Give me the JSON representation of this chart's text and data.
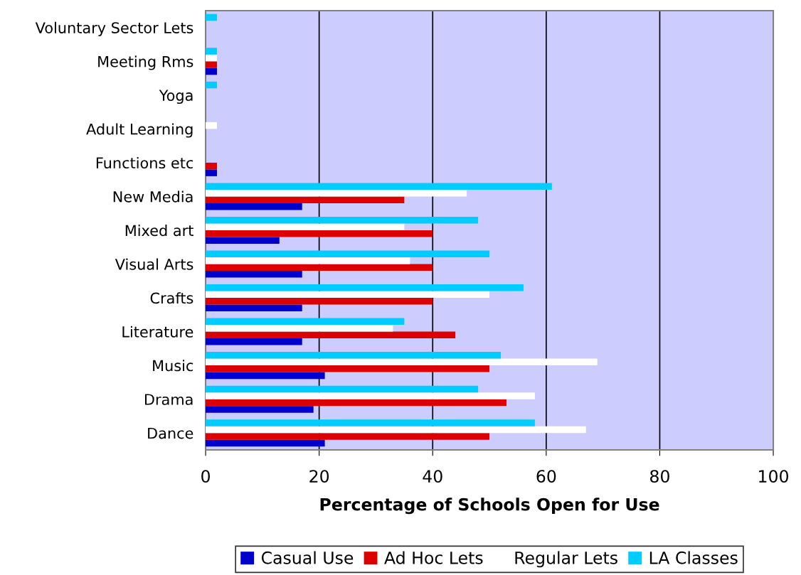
{
  "chart_data": {
    "type": "bar",
    "orientation": "horizontal",
    "xlabel": "Percentage of Schools Open for Use",
    "categories": [
      "Voluntary Sector Lets",
      "Meeting Rms",
      "Yoga",
      "Adult Learning",
      "Functions etc",
      "New Media",
      "Mixed art",
      "Visual Arts",
      "Crafts",
      "Literature",
      "Music",
      "Drama",
      "Dance"
    ],
    "series": [
      {
        "name": "Casual Use",
        "color": "#0000cc",
        "values": [
          null,
          2,
          null,
          null,
          2,
          17,
          13,
          17,
          17,
          17,
          21,
          19,
          21
        ]
      },
      {
        "name": "Ad Hoc Lets",
        "color": "#dd0000",
        "values": [
          null,
          2,
          null,
          null,
          2,
          35,
          40,
          40,
          40,
          44,
          50,
          53,
          50
        ]
      },
      {
        "name": "Regular Lets",
        "color": "#ffffff",
        "values": [
          null,
          2,
          null,
          2,
          null,
          46,
          35,
          36,
          50,
          33,
          69,
          58,
          67
        ]
      },
      {
        "name": "LA Classes",
        "color": "#00ccff",
        "values": [
          2,
          2,
          2,
          null,
          null,
          61,
          48,
          50,
          56,
          35,
          52,
          48,
          58
        ]
      }
    ],
    "xlim": [
      0,
      100
    ],
    "xticks": [
      0,
      20,
      40,
      60,
      80,
      100
    ],
    "grid": "x",
    "legend": "bottom"
  }
}
